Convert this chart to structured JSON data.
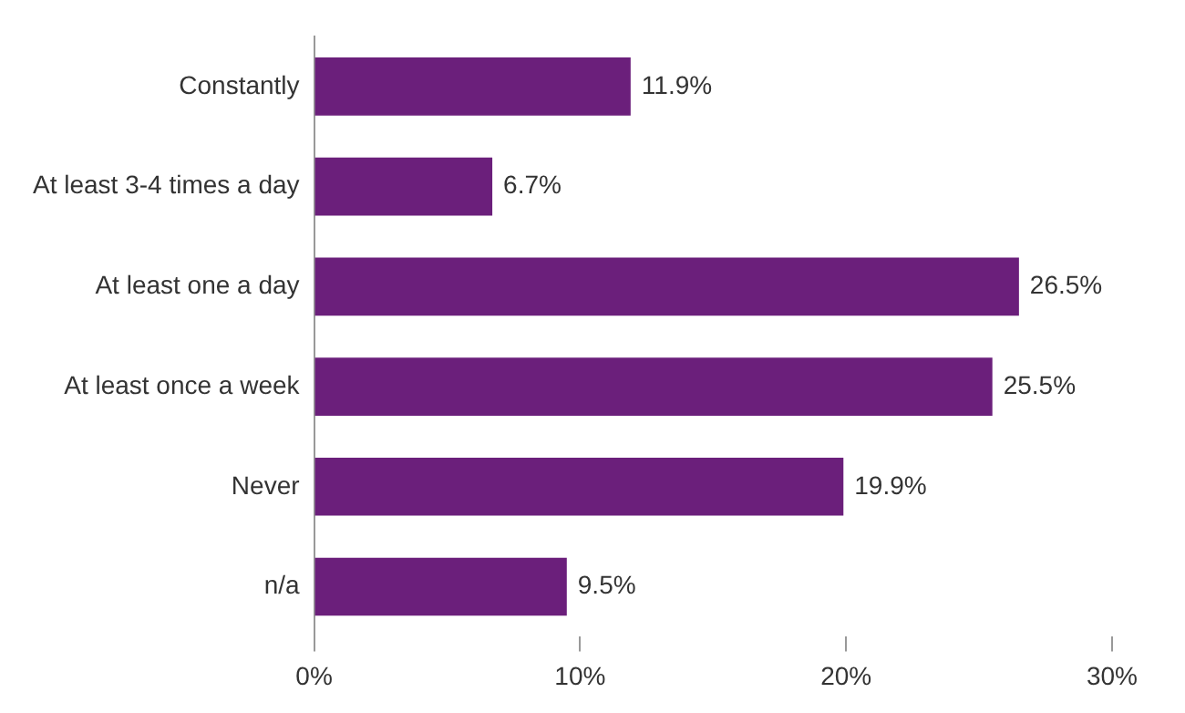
{
  "chart_data": {
    "type": "bar",
    "orientation": "horizontal",
    "categories": [
      "Constantly",
      "At least 3-4 times a day",
      "At least one a day",
      "At least once a week",
      "Never",
      "n/a"
    ],
    "values": [
      11.9,
      6.7,
      26.5,
      25.5,
      19.9,
      9.5
    ],
    "value_labels": [
      "11.9%",
      "6.7%",
      "26.5%",
      "25.5%",
      "19.9%",
      "9.5%"
    ],
    "color": "#6b1f7b",
    "xlim": [
      0,
      30
    ],
    "xticks": [
      {
        "value": 0,
        "label": "0%"
      },
      {
        "value": 10,
        "label": "10%"
      },
      {
        "value": 20,
        "label": "20%"
      },
      {
        "value": 30,
        "label": "30%"
      }
    ],
    "grid": false,
    "legend": false
  }
}
